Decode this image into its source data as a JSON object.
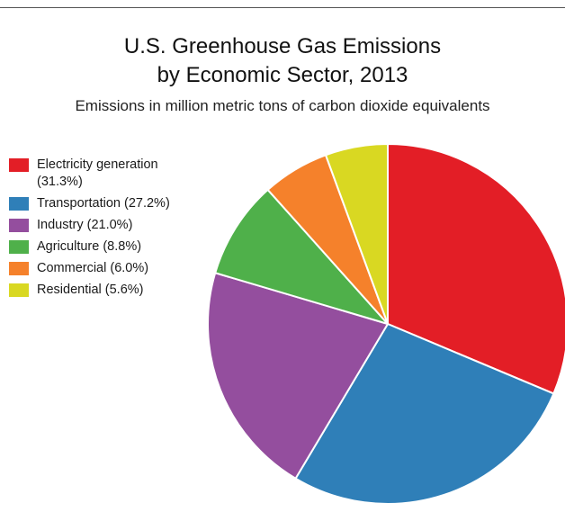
{
  "chart_data": {
    "type": "pie",
    "title_line1": "U.S. Greenhouse Gas Emissions",
    "title_line2": "by Economic Sector, 2013",
    "subtitle": "Emissions in million metric tons of carbon dioxide equivalents",
    "legend_position": "left",
    "slices": [
      {
        "label": "Electricity generation",
        "pct_label": "(31.3%)",
        "value": 31.3,
        "color": "#e31e26"
      },
      {
        "label": "Transportation",
        "pct_label": "(27.2%)",
        "value": 27.2,
        "color": "#2f7fb8"
      },
      {
        "label": "Industry",
        "pct_label": "(21.0%)",
        "value": 21.0,
        "color": "#944e9e"
      },
      {
        "label": "Agriculture",
        "pct_label": "(8.8%)",
        "value": 8.8,
        "color": "#4fb04a"
      },
      {
        "label": "Commercial",
        "pct_label": "(6.0%)",
        "value": 6.0,
        "color": "#f5812b"
      },
      {
        "label": "Residential",
        "pct_label": "(5.6%)",
        "value": 5.6,
        "color": "#d9d822"
      }
    ]
  }
}
